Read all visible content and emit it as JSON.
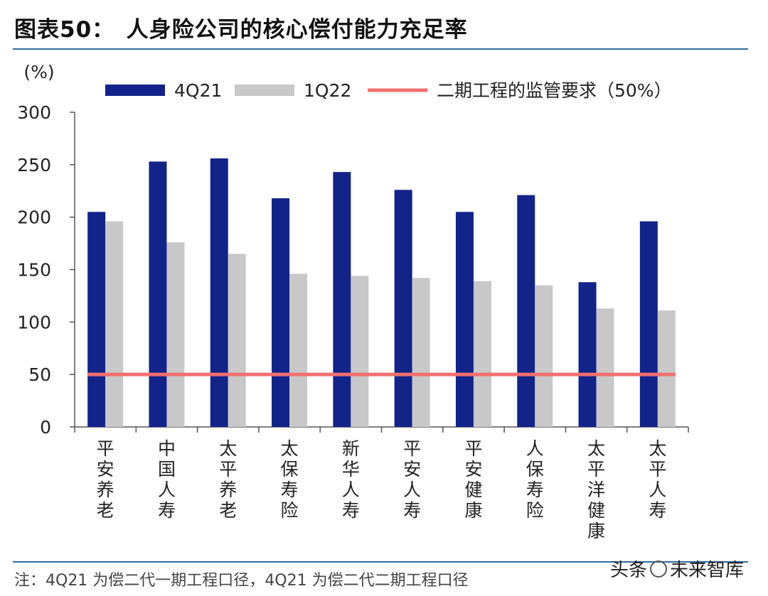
{
  "header": {
    "title": "图表50：　人身险公司的核心偿付能力充足率"
  },
  "footer": {
    "note": "注：4Q21 为偿二代一期工程口径，4Q21 为偿二代二期工程口径",
    "watermark_a": "头条",
    "watermark_b": "未来智库"
  },
  "colors": {
    "series1": "#12238a",
    "series2": "#c8c8c8",
    "reference": "#f07070",
    "axis": "#555555"
  },
  "chart_data": {
    "type": "bar",
    "title": "人身险公司的核心偿付能力充足率",
    "unit_label": "(%)",
    "categories": [
      "平安养老",
      "中国人寿",
      "太平养老",
      "太保寿险",
      "新华人寿",
      "平安人寿",
      "平安健康",
      "人保寿险",
      "太平洋健康",
      "太平人寿"
    ],
    "series": [
      {
        "name": "4Q21",
        "values": [
          205,
          253,
          256,
          218,
          243,
          226,
          205,
          221,
          138,
          196
        ],
        "color": "#12238a"
      },
      {
        "name": "1Q22",
        "values": [
          196,
          176,
          165,
          146,
          144,
          142,
          139,
          135,
          113,
          111
        ],
        "color": "#c8c8c8"
      }
    ],
    "reference_line": {
      "name": "二期工程的监管要求（50%）",
      "value": 50,
      "color": "#f07070"
    },
    "ylim": [
      0,
      300
    ],
    "yticks": [
      0,
      50,
      100,
      150,
      200,
      250,
      300
    ],
    "legend_position": "top",
    "grid": false
  }
}
